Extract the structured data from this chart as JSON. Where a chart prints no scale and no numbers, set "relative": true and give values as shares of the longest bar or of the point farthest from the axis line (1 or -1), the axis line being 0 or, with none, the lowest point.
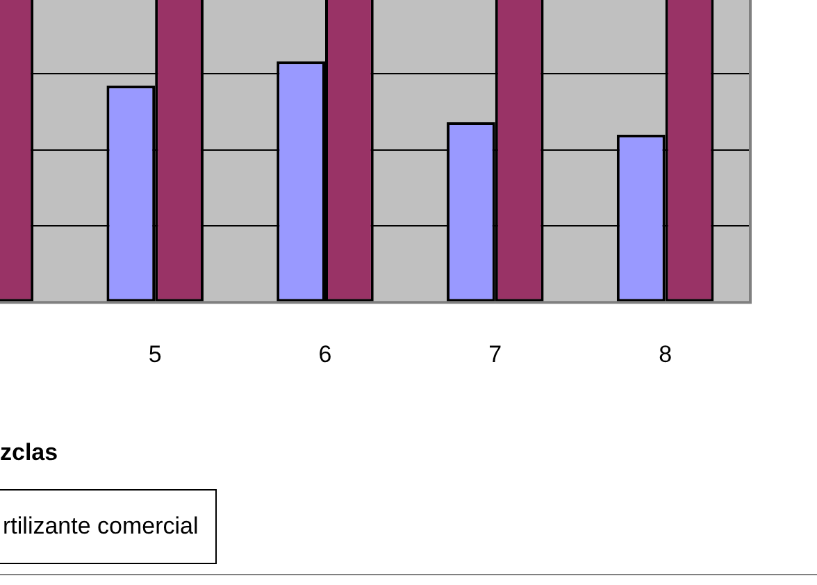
{
  "chart_data": {
    "type": "bar",
    "relative": true,
    "xlabel": "zclas",
    "categories": [
      null,
      "5",
      "6",
      "7",
      "8"
    ],
    "series": [
      {
        "color": "#9999ff",
        "values": [
          null,
          0.71,
          0.79,
          0.59,
          0.55
        ]
      },
      {
        "name": "rtilizante comercial",
        "color": "#993366",
        "values": [
          1,
          1,
          1,
          1,
          1
        ]
      }
    ],
    "grid": "y",
    "legend": "bottom left"
  }
}
